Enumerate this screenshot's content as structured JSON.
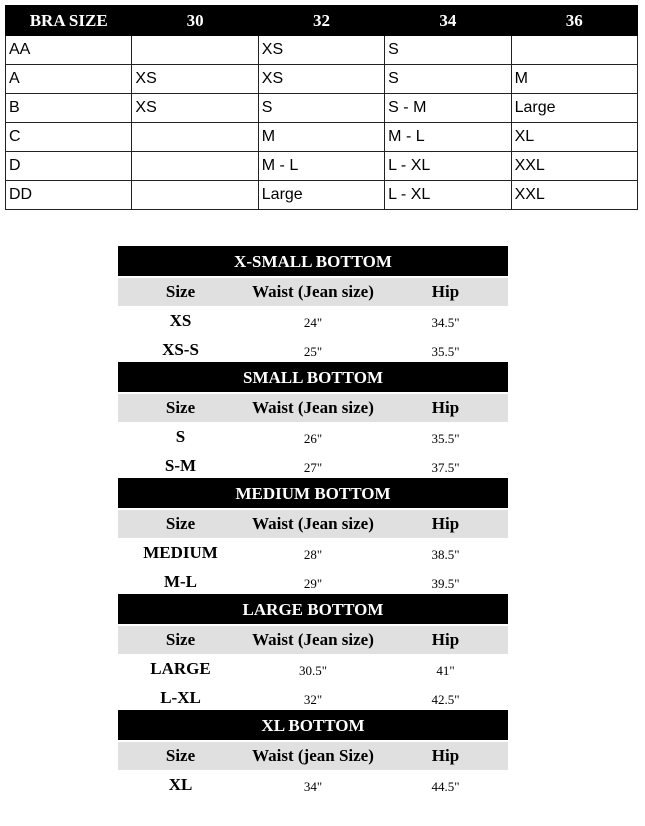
{
  "bra_table": {
    "headers": [
      "BRA SIZE",
      "30",
      "32",
      "34",
      "36"
    ],
    "rows": [
      [
        "AA",
        "",
        "XS",
        "S",
        ""
      ],
      [
        "A",
        "XS",
        "XS",
        "S",
        "M"
      ],
      [
        "B",
        "XS",
        "S",
        "S - M",
        "Large"
      ],
      [
        "C",
        "",
        "M",
        "M - L",
        "XL"
      ],
      [
        "D",
        "",
        "M - L",
        "L - XL",
        "XXL"
      ],
      [
        "DD",
        "",
        "Large",
        "L - XL",
        "XXL"
      ]
    ]
  },
  "bottom_tables": [
    {
      "title": "X-SMALL BOTTOM",
      "headers": [
        "Size",
        "Waist (Jean size)",
        "Hip"
      ],
      "rows": [
        [
          "XS",
          "24\"",
          "34.5\""
        ],
        [
          "XS-S",
          "25\"",
          "35.5\""
        ]
      ]
    },
    {
      "title": "SMALL BOTTOM",
      "headers": [
        "Size",
        "Waist (Jean size)",
        "Hip"
      ],
      "rows": [
        [
          "S",
          "26\"",
          "35.5\""
        ],
        [
          "S-M",
          "27\"",
          "37.5\""
        ]
      ]
    },
    {
      "title": "MEDIUM BOTTOM",
      "headers": [
        "Size",
        "Waist (Jean size)",
        "Hip"
      ],
      "rows": [
        [
          "MEDIUM",
          "28\"",
          "38.5\""
        ],
        [
          "M-L",
          "29\"",
          "39.5\""
        ]
      ]
    },
    {
      "title": "LARGE BOTTOM",
      "headers": [
        "Size",
        "Waist (Jean size)",
        "Hip"
      ],
      "rows": [
        [
          "LARGE",
          "30.5\"",
          "41\""
        ],
        [
          "L-XL",
          "32\"",
          "42.5\""
        ]
      ]
    },
    {
      "title": "XL BOTTOM",
      "headers": [
        "Size",
        "Waist (jean Size)",
        "Hip"
      ],
      "rows": [
        [
          "XL",
          "34\"",
          "44.5\""
        ]
      ]
    }
  ]
}
